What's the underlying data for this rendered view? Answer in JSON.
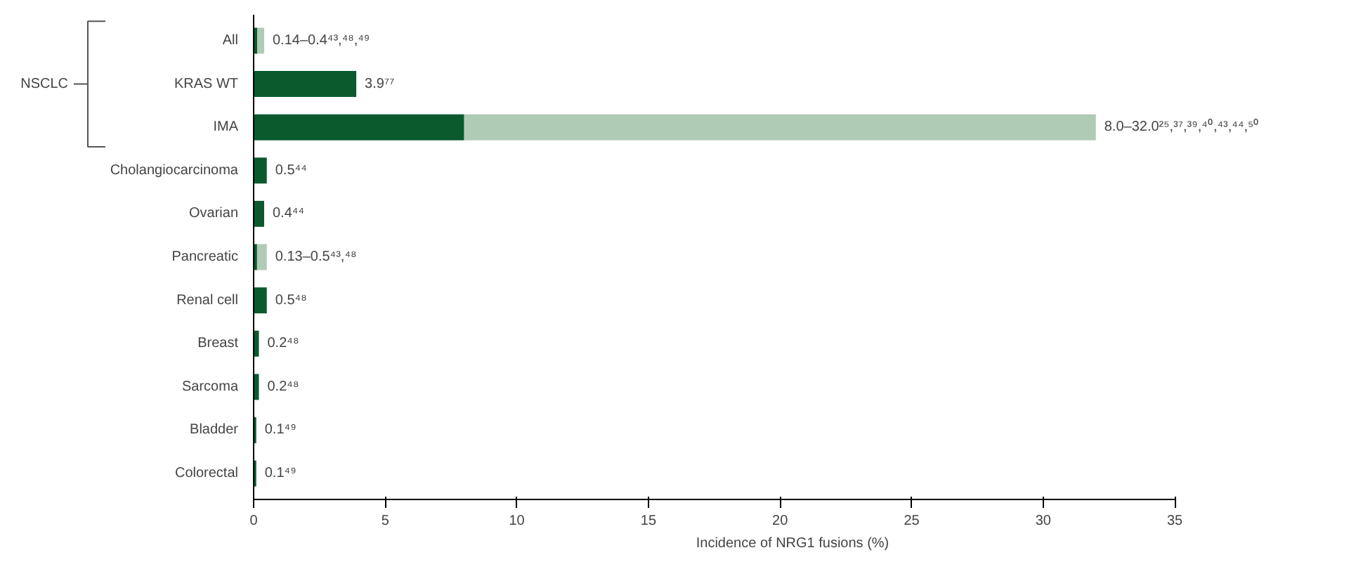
{
  "chart_data": {
    "type": "bar",
    "orientation": "horizontal",
    "stacked": true,
    "categories": [
      "All",
      "KRAS WT",
      "IMA",
      "Cholangiocarcinoma",
      "Ovarian",
      "Pancreatic",
      "Renal cell",
      "Breast",
      "Sarcoma",
      "Bladder",
      "Colorectal"
    ],
    "series": [
      {
        "color": "#0b5a2e",
        "values": [
          0.14,
          3.9,
          8.0,
          0.5,
          0.4,
          0.13,
          0.5,
          0.2,
          0.2,
          0.1,
          0.1
        ]
      },
      {
        "color": "#b0cbb5",
        "values": [
          0.26,
          null,
          24.0,
          null,
          null,
          0.37,
          null,
          null,
          null,
          null,
          null
        ]
      }
    ],
    "value_labels": [
      "0.14–0.4⁴³,⁴⁸,⁴⁹",
      "3.9⁷⁷",
      "8.0–32.0²⁵,³⁷,³⁹,⁴⁰,⁴³,⁴⁴,⁵⁰",
      "0.5⁴⁴",
      "0.4⁴⁴",
      "0.13–0.5⁴³,⁴⁸",
      "0.5⁴⁸",
      "0.2⁴⁸",
      "0.2⁴⁸",
      "0.1⁴⁹",
      "0.1⁴⁹"
    ],
    "xlabel": "Incidence of NRG1 fusions (%)",
    "xlim": [
      0,
      35
    ],
    "xticks": [
      0,
      5,
      10,
      15,
      20,
      25,
      30,
      35
    ],
    "annotations": [
      "NSCLC"
    ],
    "grid": false
  }
}
